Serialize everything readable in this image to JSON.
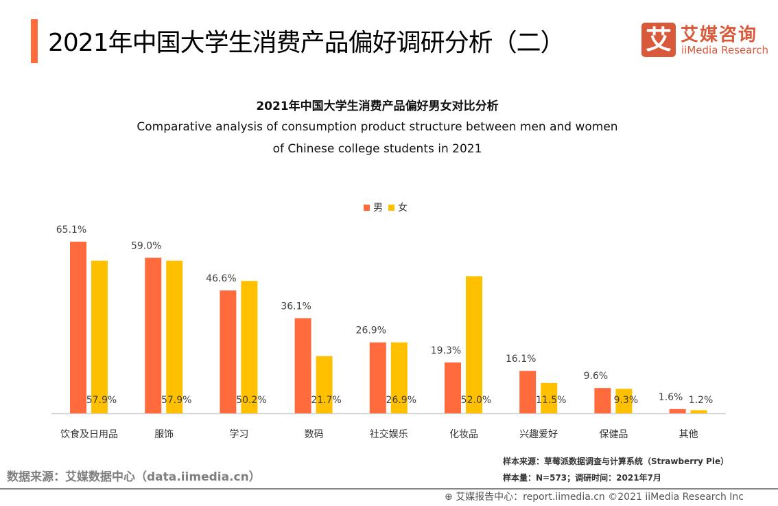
{
  "header": {
    "title": "2021年中国大学生消费产品偏好调研分析（二）",
    "logo_mark": "艾",
    "logo_cn": "艾媒咨询",
    "logo_en": "iiMedia Research"
  },
  "chart_data": {
    "type": "bar",
    "title": "2021年中国大学生消费产品偏好男女对比分析",
    "subtitle_line1": "Comparative analysis of consumption product structure between men and women",
    "subtitle_line2": "of Chinese college students in 2021",
    "categories": [
      "饮食及日用品",
      "服饰",
      "学习",
      "数码",
      "社交娱乐",
      "化妆品",
      "兴趣爱好",
      "保健品",
      "其他"
    ],
    "series": [
      {
        "name": "男",
        "color": "#FF6B3D",
        "values": [
          65.1,
          59.0,
          46.6,
          36.1,
          26.9,
          19.3,
          16.1,
          9.6,
          1.6
        ],
        "labels": [
          "65.1%",
          "59.0%",
          "46.6%",
          "36.1%",
          "26.9%",
          "19.3%",
          "16.1%",
          "9.6%",
          "1.6%"
        ]
      },
      {
        "name": "女",
        "color": "#FFC000",
        "values": [
          57.9,
          57.9,
          50.2,
          21.7,
          26.9,
          52.0,
          11.5,
          9.3,
          1.2
        ],
        "labels": [
          "57.9%",
          "57.9%",
          "50.2%",
          "21.7%",
          "26.9%",
          "52.0%",
          "11.5%",
          "9.3%",
          "1.2%"
        ]
      }
    ],
    "unit": "%",
    "legend": "top-center",
    "grid": false
  },
  "footer": {
    "source": "数据来源：艾媒数据中心（data.iimedia.cn）",
    "sample_source": "样本来源：草莓派数据调查与计算系统（Strawberry Pie）",
    "sample_size": "样本量：N=573；调研时间：2021年7月",
    "copyright": "艾媒报告中心：report.iimedia.cn   ©2021  iiMedia Research  Inc"
  }
}
